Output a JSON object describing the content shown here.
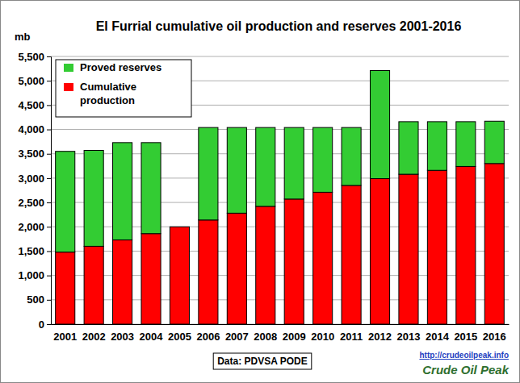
{
  "chart_data": {
    "type": "bar",
    "title": "El Furrial cumulative oil production and reserves 2001-2016",
    "y_label": "mb",
    "annotations": [
      "Data: PDVSA PODE",
      "http://crudeoilpeak.info",
      "Crude Oil Peak"
    ],
    "categories": [
      "2001",
      "2002",
      "2003",
      "2004",
      "2005",
      "2006",
      "2007",
      "2008",
      "2009",
      "2010",
      "2011",
      "2012",
      "2013",
      "2014",
      "2015",
      "2016"
    ],
    "series": [
      {
        "name": "Cumulative production",
        "color": "#ff0000",
        "values": [
          1480,
          1600,
          1730,
          1860,
          2000,
          2140,
          2280,
          2420,
          2570,
          2710,
          2850,
          2990,
          3080,
          3160,
          3240,
          3300
        ]
      },
      {
        "name": "Proved reserves",
        "color": "#33cc33",
        "values": [
          2070,
          1970,
          2000,
          1870,
          null,
          1900,
          1760,
          1620,
          1470,
          1330,
          1190,
          2220,
          1080,
          1000,
          920,
          870
        ]
      }
    ],
    "stacked": true,
    "legend": "upper left",
    "grid": true,
    "ylim": [
      0,
      5500
    ],
    "yticks": [
      0,
      500,
      {
        "value": 1000,
        "label": "1,000"
      },
      {
        "value": 1500,
        "label": "1,500"
      },
      {
        "value": 2000,
        "label": "2,000"
      },
      {
        "value": 2500,
        "label": "2,500"
      },
      {
        "value": 3000,
        "label": "3,000"
      },
      {
        "value": 3500,
        "label": "3,500"
      },
      {
        "value": 4000,
        "label": "4,000"
      },
      {
        "value": 4500,
        "label": "4,500"
      },
      {
        "value": 5000,
        "label": "5,000"
      },
      {
        "value": 5500,
        "label": "5,500"
      }
    ]
  }
}
